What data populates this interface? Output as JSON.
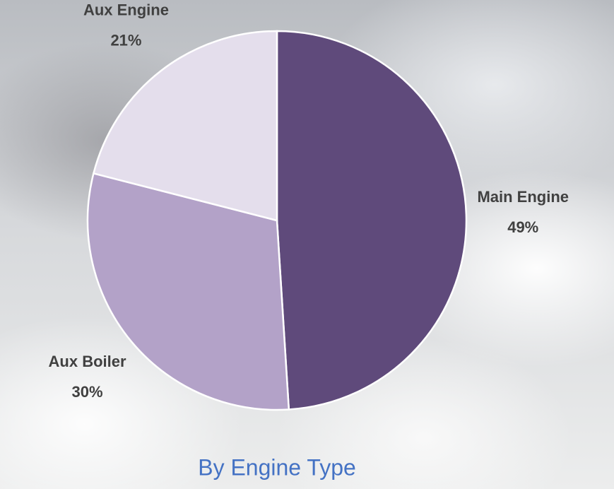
{
  "chart_data": {
    "type": "pie",
    "title": "By Engine Type",
    "categories": [
      "Main Engine",
      "Aux Boiler",
      "Aux Engine"
    ],
    "values": [
      49,
      30,
      21
    ],
    "value_labels": [
      "49%",
      "30%",
      "21%"
    ],
    "colors": [
      "#5f4a7b",
      "#b3a2c8",
      "#e4deec"
    ]
  }
}
